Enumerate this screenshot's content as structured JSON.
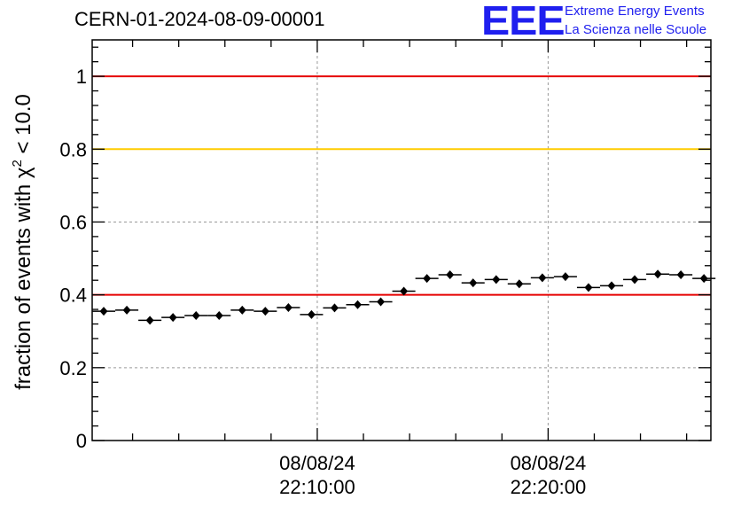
{
  "header": {
    "run_title": "CERN-01-2024-08-09-00001",
    "logo_text": "EEE",
    "logo_line1": "Extreme Energy Events",
    "logo_line2": "La Scienza nelle Scuole"
  },
  "colors": {
    "logo": "#1f1fef",
    "threshold_red": "#e60000",
    "threshold_yellow": "#ffcc00",
    "markers": "#000000",
    "grid": "#999999"
  },
  "chart_data": {
    "type": "scatter",
    "title": "",
    "xlabel": "",
    "ylabel_prefix": "fraction of events with ",
    "ylabel_symbol": "χ",
    "ylabel_superscript": "2",
    "ylabel_suffix": " < 10.0",
    "ylim": [
      0,
      1.1
    ],
    "yticks": [
      0,
      0.2,
      0.4,
      0.6,
      0.8,
      1
    ],
    "ytick_labels": [
      "0",
      "0.2",
      "0.4",
      "0.6",
      "0.8",
      "1"
    ],
    "xlim_minutes": [
      0,
      26.8
    ],
    "xticks": [
      {
        "minute": 9.75,
        "date": "08/08/24",
        "time": "22:10:00"
      },
      {
        "minute": 19.75,
        "date": "08/08/24",
        "time": "22:20:00"
      }
    ],
    "x_bin_width_minutes": 1,
    "grid": true,
    "reference_lines": [
      {
        "y": 1.0,
        "color": "red"
      },
      {
        "y": 0.8,
        "color": "yellow"
      },
      {
        "y": 0.4,
        "color": "red"
      }
    ],
    "points": [
      {
        "x": 0.5,
        "y": 0.355
      },
      {
        "x": 1.5,
        "y": 0.358
      },
      {
        "x": 2.5,
        "y": 0.33
      },
      {
        "x": 3.5,
        "y": 0.338
      },
      {
        "x": 4.5,
        "y": 0.343
      },
      {
        "x": 5.5,
        "y": 0.343
      },
      {
        "x": 6.5,
        "y": 0.358
      },
      {
        "x": 7.5,
        "y": 0.355
      },
      {
        "x": 8.5,
        "y": 0.365
      },
      {
        "x": 9.5,
        "y": 0.346
      },
      {
        "x": 10.5,
        "y": 0.364
      },
      {
        "x": 11.5,
        "y": 0.373
      },
      {
        "x": 12.5,
        "y": 0.381
      },
      {
        "x": 13.5,
        "y": 0.41
      },
      {
        "x": 14.5,
        "y": 0.445
      },
      {
        "x": 15.5,
        "y": 0.455
      },
      {
        "x": 16.5,
        "y": 0.433
      },
      {
        "x": 17.5,
        "y": 0.442
      },
      {
        "x": 18.5,
        "y": 0.43
      },
      {
        "x": 19.5,
        "y": 0.447
      },
      {
        "x": 20.5,
        "y": 0.45
      },
      {
        "x": 21.5,
        "y": 0.42
      },
      {
        "x": 22.5,
        "y": 0.425
      },
      {
        "x": 23.5,
        "y": 0.442
      },
      {
        "x": 24.5,
        "y": 0.457
      },
      {
        "x": 25.5,
        "y": 0.455
      },
      {
        "x": 26.5,
        "y": 0.445
      }
    ]
  }
}
